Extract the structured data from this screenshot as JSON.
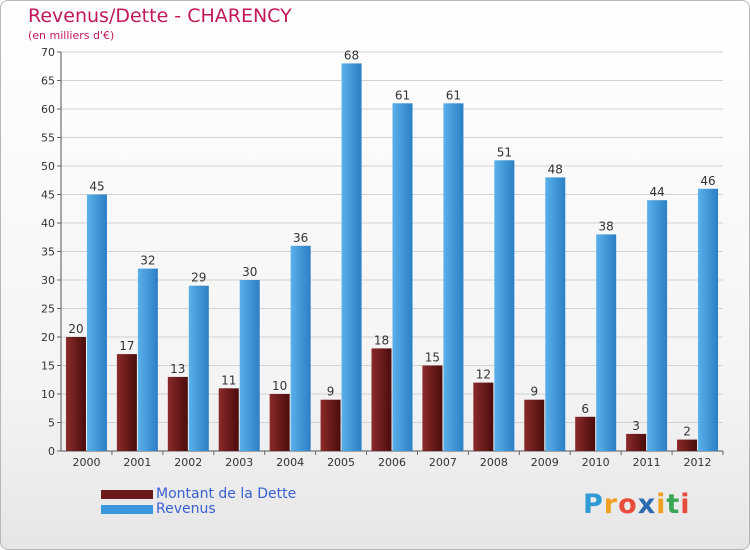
{
  "colors": {
    "debt": "#6b1a1a",
    "revenue": "#3a97db",
    "title": "#c2185b",
    "legend_text": "#3a5fd0"
  },
  "chart_data": {
    "type": "bar",
    "title": "Revenus/Dette - CHARENCY",
    "subtitle": "(en milliers d'€)",
    "categories": [
      "2000",
      "2001",
      "2002",
      "2003",
      "2004",
      "2005",
      "2006",
      "2007",
      "2008",
      "2009",
      "2010",
      "2011",
      "2012"
    ],
    "series": [
      {
        "name": "Montant de la Dette",
        "values": [
          20,
          17,
          13,
          11,
          10,
          9,
          18,
          15,
          12,
          9,
          6,
          3,
          2
        ]
      },
      {
        "name": "Revenus",
        "values": [
          45,
          32,
          29,
          30,
          36,
          68,
          61,
          61,
          51,
          48,
          38,
          44,
          46
        ]
      }
    ],
    "ylim": [
      0,
      70
    ],
    "yticks": [
      0,
      5,
      10,
      15,
      20,
      25,
      30,
      35,
      40,
      45,
      50,
      55,
      60,
      65,
      70
    ],
    "grid": true,
    "legend": "bottom-left"
  },
  "legend": {
    "items": [
      {
        "label": "Montant de la Dette"
      },
      {
        "label": "Revenus"
      }
    ]
  },
  "logo": {
    "letters": [
      "P",
      "r",
      "o",
      "x",
      "i",
      "t",
      "i"
    ]
  }
}
